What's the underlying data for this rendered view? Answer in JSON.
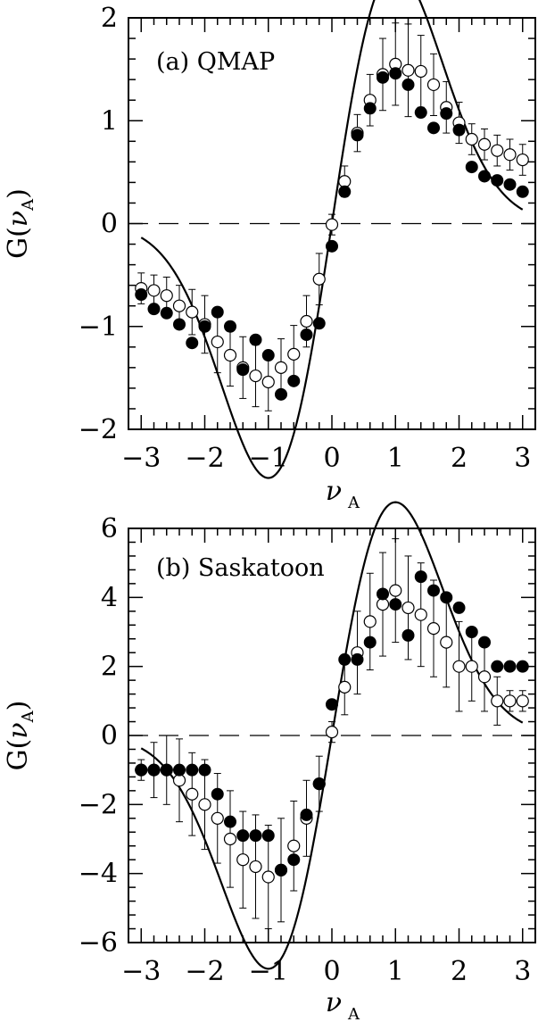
{
  "chart_data": [
    {
      "type": "scatter",
      "panel_label": "(a) QMAP",
      "xlabel": "ν_A",
      "ylabel": "G(ν_A)",
      "xlim": [
        -3.2,
        3.2
      ],
      "ylim": [
        -2,
        2
      ],
      "xticks": [
        -3,
        -2,
        -1,
        0,
        1,
        2,
        3
      ],
      "xtick_labels": [
        "−3",
        "−2",
        "−1",
        "0",
        "1",
        "2",
        "3"
      ],
      "yticks": [
        -2,
        -1,
        0,
        1,
        2
      ],
      "ytick_labels": [
        "−2",
        "−1",
        "0",
        "1",
        "2"
      ],
      "reference_line": {
        "y": 0,
        "style": "dashed"
      },
      "theory_curve": {
        "style": "solid",
        "amplitude": 1.5,
        "form": "A·ν·exp(1 − ν²/2)"
      },
      "x": [
        -3.0,
        -2.8,
        -2.6,
        -2.4,
        -2.2,
        -2.0,
        -1.8,
        -1.6,
        -1.4,
        -1.2,
        -1.0,
        -0.8,
        -0.6,
        -0.4,
        -0.2,
        0.0,
        0.2,
        0.4,
        0.6,
        0.8,
        1.0,
        1.2,
        1.4,
        1.6,
        1.8,
        2.0,
        2.2,
        2.4,
        2.6,
        2.8,
        3.0
      ],
      "series": [
        {
          "marker": "filled circle",
          "values": [
            -0.69,
            -0.83,
            -0.87,
            -0.98,
            -1.16,
            -1.0,
            -0.86,
            -1.0,
            -1.42,
            -1.13,
            -1.28,
            -1.66,
            -1.53,
            -1.08,
            -0.97,
            -0.22,
            0.31,
            0.86,
            1.12,
            1.42,
            1.46,
            1.35,
            1.08,
            0.93,
            1.07,
            0.91,
            0.55,
            0.46,
            0.42,
            0.38,
            0.31
          ]
        },
        {
          "marker": "open circle",
          "values": [
            -0.63,
            -0.65,
            -0.7,
            -0.8,
            -0.86,
            -0.98,
            -1.15,
            -1.28,
            -1.4,
            -1.48,
            -1.54,
            -1.4,
            -1.27,
            -0.95,
            -0.54,
            -0.01,
            0.41,
            0.88,
            1.2,
            1.45,
            1.55,
            1.49,
            1.48,
            1.35,
            1.13,
            0.98,
            0.82,
            0.77,
            0.71,
            0.67,
            0.62
          ],
          "error": [
            0.15,
            0.15,
            0.18,
            0.2,
            0.22,
            0.28,
            0.3,
            0.3,
            0.3,
            0.3,
            0.28,
            0.28,
            0.28,
            0.25,
            0.25,
            0.1,
            0.15,
            0.18,
            0.25,
            0.35,
            0.4,
            0.45,
            0.35,
            0.3,
            0.25,
            0.2,
            0.15,
            0.15,
            0.15,
            0.15,
            0.15
          ]
        }
      ]
    },
    {
      "type": "scatter",
      "panel_label": "(b) Saskatoon",
      "xlabel": "ν_A",
      "ylabel": "G(ν_A)",
      "xlim": [
        -3.2,
        3.2
      ],
      "ylim": [
        -6,
        6
      ],
      "xticks": [
        -3,
        -2,
        -1,
        0,
        1,
        2,
        3
      ],
      "xtick_labels": [
        "−3",
        "−2",
        "−1",
        "0",
        "1",
        "2",
        "3"
      ],
      "yticks": [
        -6,
        -4,
        -2,
        0,
        2,
        4,
        6
      ],
      "ytick_labels": [
        "−6",
        "−4",
        "−2",
        "0",
        "2",
        "4",
        "6"
      ],
      "reference_line": {
        "y": 0,
        "style": "dashed"
      },
      "theory_curve": {
        "style": "solid",
        "amplitude": 4.1,
        "form": "A·ν·exp(1 − ν²/2)"
      },
      "x": [
        -3.0,
        -2.8,
        -2.6,
        -2.4,
        -2.2,
        -2.0,
        -1.8,
        -1.6,
        -1.4,
        -1.2,
        -1.0,
        -0.8,
        -0.6,
        -0.4,
        -0.2,
        0.0,
        0.2,
        0.4,
        0.6,
        0.8,
        1.0,
        1.2,
        1.4,
        1.6,
        1.8,
        2.0,
        2.2,
        2.4,
        2.6,
        2.8,
        3.0
      ],
      "series": [
        {
          "marker": "filled circle",
          "values": [
            -1.0,
            -1.0,
            -1.0,
            -1.0,
            -1.0,
            -1.0,
            -1.7,
            -2.5,
            -2.9,
            -2.9,
            -2.9,
            -3.9,
            -3.6,
            -2.3,
            -1.4,
            0.9,
            2.2,
            2.2,
            2.7,
            4.1,
            3.8,
            2.9,
            4.6,
            4.2,
            4.0,
            3.7,
            3.0,
            2.7,
            2.0,
            2.0,
            2.0
          ]
        },
        {
          "marker": "open circle",
          "values": [
            -1.0,
            -1.0,
            -1.0,
            -1.3,
            -1.7,
            -2.0,
            -2.4,
            -3.0,
            -3.6,
            -3.8,
            -4.1,
            -3.9,
            -3.2,
            -2.4,
            -1.4,
            0.1,
            1.4,
            2.4,
            3.3,
            3.8,
            4.2,
            3.7,
            3.5,
            3.1,
            2.7,
            2.0,
            2.0,
            1.7,
            1.0,
            1.0,
            1.0
          ],
          "error": [
            0.3,
            0.8,
            1.0,
            1.2,
            1.2,
            1.3,
            1.3,
            1.4,
            1.4,
            1.5,
            1.5,
            1.5,
            1.3,
            1.1,
            0.8,
            0.3,
            0.8,
            1.2,
            1.4,
            1.5,
            1.5,
            1.5,
            1.5,
            1.4,
            1.3,
            1.3,
            1.0,
            1.0,
            0.7,
            0.3,
            0.3
          ]
        }
      ]
    }
  ]
}
